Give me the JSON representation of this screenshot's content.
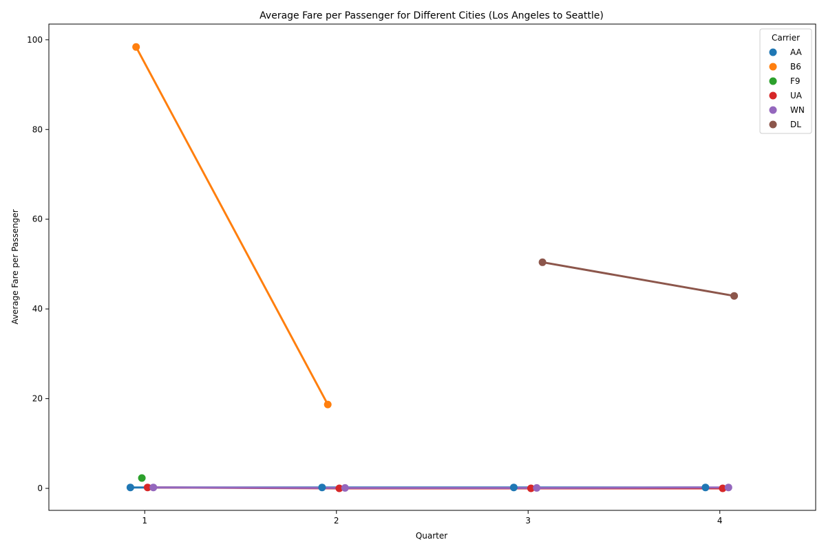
{
  "chart_data": {
    "type": "line",
    "title": "Average Fare per Passenger for Different Cities (Los Angeles to Seattle)",
    "xlabel": "Quarter",
    "ylabel": "Average Fare per Passenger",
    "x_ticks": [
      1,
      2,
      3,
      4
    ],
    "y_ticks": [
      0,
      20,
      40,
      60,
      80,
      100
    ],
    "xlim": [
      0.5,
      4.5
    ],
    "ylim": [
      -4.9,
      103.5
    ],
    "grid": false,
    "legend": {
      "title": "Carrier",
      "placement": "top-right"
    },
    "series": [
      {
        "name": "AA",
        "color": "#1f77b4",
        "points": [
          [
            1,
            0.2
          ],
          [
            2,
            0.2
          ],
          [
            3,
            0.2
          ],
          [
            4,
            0.2
          ]
        ]
      },
      {
        "name": "B6",
        "color": "#ff7f0e",
        "points": [
          [
            1,
            98.4
          ],
          [
            2,
            18.7
          ]
        ]
      },
      {
        "name": "F9",
        "color": "#2ca02c",
        "points": [
          [
            1,
            2.3
          ]
        ]
      },
      {
        "name": "UA",
        "color": "#d62728",
        "points": [
          [
            1,
            0.2
          ],
          [
            2,
            0.0
          ],
          [
            3,
            0.0
          ],
          [
            4,
            0.0
          ]
        ]
      },
      {
        "name": "WN",
        "color": "#9467bd",
        "points": [
          [
            1,
            0.2
          ],
          [
            2,
            0.1
          ],
          [
            3,
            0.1
          ],
          [
            4,
            0.2
          ]
        ]
      },
      {
        "name": "DL",
        "color": "#8c564b",
        "points": [
          [
            3,
            50.4
          ],
          [
            4,
            42.9
          ]
        ]
      }
    ]
  }
}
